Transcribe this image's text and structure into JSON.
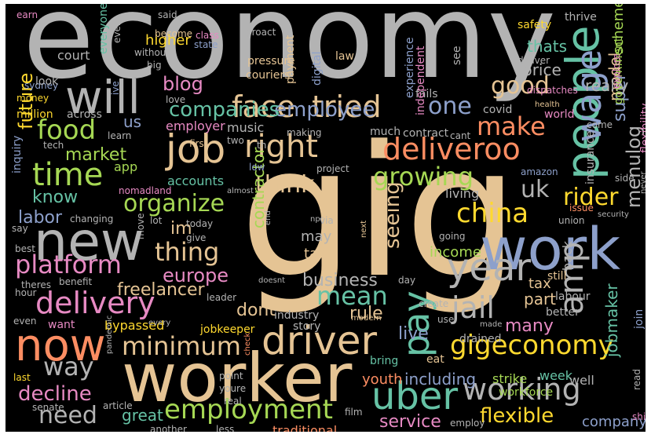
{
  "palette": {
    "gray": "#b3b3b3",
    "tan": "#e5c494",
    "teal": "#66c2a5",
    "orange": "#fc8d62",
    "blue": "#8da0cb",
    "pink": "#e78ac3",
    "green": "#a6d854",
    "yellow": "#ffd92f",
    "background": "#000000"
  },
  "words": [
    {
      "text": "economy",
      "color": "#b3b3b3",
      "orientation": "horizontal"
    },
    {
      "text": "gig",
      "color": "#e5c494",
      "orientation": "horizontal"
    },
    {
      "text": "worker",
      "color": "#e5c494",
      "orientation": "horizontal"
    },
    {
      "text": "people",
      "color": "#66c2a5",
      "orientation": "vertical"
    },
    {
      "text": "work",
      "color": "#8da0cb",
      "orientation": "horizontal"
    },
    {
      "text": "new",
      "color": "#b3b3b3",
      "orientation": "horizontal"
    },
    {
      "text": "now",
      "color": "#fc8d62",
      "orientation": "horizontal"
    },
    {
      "text": "will",
      "color": "#b3b3b3",
      "orientation": "horizontal"
    },
    {
      "text": "job",
      "color": "#e5c494",
      "orientation": "horizontal"
    },
    {
      "text": "wage",
      "color": "#8da0cb",
      "orientation": "vertical"
    },
    {
      "text": "driver",
      "color": "#e5c494",
      "orientation": "horizontal"
    },
    {
      "text": "uber",
      "color": "#66c2a5",
      "orientation": "horizontal"
    },
    {
      "text": "pay",
      "color": "#66c2a5",
      "orientation": "vertical"
    },
    {
      "text": "delivery",
      "color": "#e78ac3",
      "orientation": "horizontal"
    },
    {
      "text": "deliveroo",
      "color": "#fc8d62",
      "orientation": "horizontal"
    },
    {
      "text": "right",
      "color": "#e5c494",
      "orientation": "horizontal"
    },
    {
      "text": "time",
      "color": "#a6d854",
      "orientation": "horizontal"
    },
    {
      "text": "face",
      "color": "#e5c494",
      "orientation": "horizontal"
    },
    {
      "text": "tried",
      "color": "#e5c494",
      "orientation": "horizontal"
    },
    {
      "text": "year",
      "color": "#b3b3b3",
      "orientation": "horizontal"
    },
    {
      "text": "amp",
      "color": "#b3b3b3",
      "orientation": "vertical"
    },
    {
      "text": "china",
      "color": "#ffd92f",
      "orientation": "horizontal"
    },
    {
      "text": "working",
      "color": "#b3b3b3",
      "orientation": "horizontal"
    },
    {
      "text": "employment",
      "color": "#a6d854",
      "orientation": "horizontal"
    },
    {
      "text": "gigeconomy",
      "color": "#ffd92f",
      "orientation": "horizontal"
    },
    {
      "text": "platform",
      "color": "#e78ac3",
      "orientation": "horizontal"
    },
    {
      "text": "organize",
      "color": "#a6d854",
      "orientation": "horizontal"
    },
    {
      "text": "growing",
      "color": "#a6d854",
      "orientation": "horizontal"
    },
    {
      "text": "minimum",
      "color": "#e5c494",
      "orientation": "horizontal"
    },
    {
      "text": "make",
      "color": "#fc8d62",
      "orientation": "horizontal"
    },
    {
      "text": "mean",
      "color": "#66c2a5",
      "orientation": "horizontal"
    },
    {
      "text": "jail",
      "color": "#b3b3b3",
      "orientation": "horizontal"
    },
    {
      "text": "way",
      "color": "#b3b3b3",
      "orientation": "horizontal"
    },
    {
      "text": "food",
      "color": "#a6d854",
      "orientation": "horizontal"
    },
    {
      "text": "thing",
      "color": "#e5c494",
      "orientation": "horizontal"
    },
    {
      "text": "think",
      "color": "#e5c494",
      "orientation": "horizontal"
    },
    {
      "text": "uk",
      "color": "#b3b3b3",
      "orientation": "horizontal"
    },
    {
      "text": "one",
      "color": "#8da0cb",
      "orientation": "horizontal"
    },
    {
      "text": "good",
      "color": "#e5c494",
      "orientation": "horizontal"
    },
    {
      "text": "need",
      "color": "#b3b3b3",
      "orientation": "horizontal"
    },
    {
      "text": "rider",
      "color": "#ffd92f",
      "orientation": "horizontal"
    },
    {
      "text": "decline",
      "color": "#e78ac3",
      "orientation": "horizontal"
    },
    {
      "text": "flexible",
      "color": "#ffd92f",
      "orientation": "horizontal"
    },
    {
      "text": "employee",
      "color": "#8da0cb",
      "orientation": "horizontal"
    },
    {
      "text": "companies",
      "color": "#66c2a5",
      "orientation": "horizontal"
    },
    {
      "text": "europe",
      "color": "#e78ac3",
      "orientation": "horizontal"
    },
    {
      "text": "seeing",
      "color": "#e5c494",
      "orientation": "vertical"
    },
    {
      "text": "dont",
      "color": "#e5c494",
      "orientation": "horizontal"
    },
    {
      "text": "rule",
      "color": "#e5c494",
      "orientation": "horizontal"
    },
    {
      "text": "menulog",
      "color": "#b3b3b3",
      "orientation": "vertical"
    },
    {
      "text": "blog",
      "color": "#e78ac3",
      "orientation": "horizontal"
    },
    {
      "text": "many",
      "color": "#e78ac3",
      "orientation": "horizontal"
    },
    {
      "text": "live",
      "color": "#8da0cb",
      "orientation": "horizontal"
    },
    {
      "text": "part",
      "color": "#e5c494",
      "orientation": "horizontal"
    },
    {
      "text": "super",
      "color": "#8da0cb",
      "orientation": "vertical"
    },
    {
      "text": "model",
      "color": "#e5c494",
      "orientation": "vertical"
    },
    {
      "text": "service",
      "color": "#e78ac3",
      "orientation": "horizontal"
    },
    {
      "text": "im",
      "color": "#e5c494",
      "orientation": "horizontal"
    },
    {
      "text": "know",
      "color": "#66c2a5",
      "orientation": "horizontal"
    },
    {
      "text": "labor",
      "color": "#8da0cb",
      "orientation": "horizontal"
    },
    {
      "text": "market",
      "color": "#a6d854",
      "orientation": "horizontal"
    },
    {
      "text": "future",
      "color": "#ffd92f",
      "orientation": "vertical"
    },
    {
      "text": "business",
      "color": "#b3b3b3",
      "orientation": "horizontal"
    },
    {
      "text": "great",
      "color": "#66c2a5",
      "orientation": "horizontal"
    },
    {
      "text": "thats",
      "color": "#66c2a5",
      "orientation": "horizontal"
    },
    {
      "text": "really",
      "color": "#b3b3b3",
      "orientation": "horizontal"
    },
    {
      "text": "price",
      "color": "#b3b3b3",
      "orientation": "horizontal"
    },
    {
      "text": "us",
      "color": "#8da0cb",
      "orientation": "horizontal"
    },
    {
      "text": "jobmaker",
      "color": "#66c2a5",
      "orientation": "vertical"
    },
    {
      "text": "may",
      "color": "#b3b3b3",
      "orientation": "horizontal"
    },
    {
      "text": "contractor",
      "color": "#a6d854",
      "orientation": "vertical"
    },
    {
      "text": "freelancer",
      "color": "#e5c494",
      "orientation": "horizontal"
    },
    {
      "text": "including",
      "color": "#8da0cb",
      "orientation": "horizontal"
    },
    {
      "text": "youth",
      "color": "#fc8d62",
      "orientation": "horizontal"
    },
    {
      "text": "company",
      "color": "#8da0cb",
      "orientation": "horizontal"
    },
    {
      "text": "tax",
      "color": "#e5c494",
      "orientation": "horizontal"
    },
    {
      "text": "take",
      "color": "#e5c494",
      "orientation": "horizontal"
    },
    {
      "text": "higher",
      "color": "#ffd92f",
      "orientation": "horizontal"
    },
    {
      "text": "employer",
      "color": "#e78ac3",
      "orientation": "horizontal"
    },
    {
      "text": "music",
      "color": "#b3b3b3",
      "orientation": "horizontal"
    },
    {
      "text": "accounts",
      "color": "#66c2a5",
      "orientation": "horizontal"
    },
    {
      "text": "industry",
      "color": "#b3b3b3",
      "orientation": "horizontal"
    },
    {
      "text": "story",
      "color": "#b3b3b3",
      "orientation": "horizontal"
    },
    {
      "text": "traditional",
      "color": "#fc8d62",
      "orientation": "horizontal"
    },
    {
      "text": "income",
      "color": "#a6d854",
      "orientation": "horizontal"
    },
    {
      "text": "court",
      "color": "#b3b3b3",
      "orientation": "horizontal"
    },
    {
      "text": "app",
      "color": "#a6d854",
      "orientation": "horizontal"
    },
    {
      "text": "scheme",
      "color": "#a6d854",
      "orientation": "vertical"
    },
    {
      "text": "jobkeeper",
      "color": "#ffd92f",
      "orientation": "horizontal"
    },
    {
      "text": "living",
      "color": "#b3b3b3",
      "orientation": "horizontal"
    },
    {
      "text": "want",
      "color": "#e78ac3",
      "orientation": "horizontal"
    },
    {
      "text": "bypassed",
      "color": "#ffd92f",
      "orientation": "horizontal"
    },
    {
      "text": "drained",
      "color": "#b3b3b3",
      "orientation": "horizontal"
    },
    {
      "text": "strike",
      "color": "#a6d854",
      "orientation": "horizontal"
    },
    {
      "text": "week",
      "color": "#66c2a5",
      "orientation": "horizontal"
    },
    {
      "text": "well",
      "color": "#b3b3b3",
      "orientation": "horizontal"
    },
    {
      "text": "safety",
      "color": "#ffd92f",
      "orientation": "horizontal"
    },
    {
      "text": "thrive",
      "color": "#b3b3b3",
      "orientation": "horizontal"
    },
    {
      "text": "insurance",
      "color": "#b3b3b3",
      "orientation": "vertical"
    },
    {
      "text": "government",
      "color": "#a6d854",
      "orientation": "vertical"
    },
    {
      "text": "flexibility",
      "color": "#e78ac3",
      "orientation": "vertical"
    },
    {
      "text": "back",
      "color": "#b3b3b3",
      "orientation": "vertical"
    },
    {
      "text": "still",
      "color": "#e5c494",
      "orientation": "horizontal"
    },
    {
      "text": "labour",
      "color": "#b3b3b3",
      "orientation": "horizontal"
    },
    {
      "text": "better",
      "color": "#b3b3b3",
      "orientation": "horizontal"
    },
    {
      "text": "join",
      "color": "#8da0cb",
      "orientation": "vertical"
    },
    {
      "text": "workforce",
      "color": "#a6d854",
      "orientation": "horizontal"
    },
    {
      "text": "bring",
      "color": "#66c2a5",
      "orientation": "horizontal"
    },
    {
      "text": "eat",
      "color": "#e5c494",
      "orientation": "horizontal"
    },
    {
      "text": "covid",
      "color": "#b3b3b3",
      "orientation": "horizontal"
    },
    {
      "text": "world",
      "color": "#e78ac3",
      "orientation": "horizontal"
    },
    {
      "text": "much",
      "color": "#b3b3b3",
      "orientation": "horizontal"
    },
    {
      "text": "contract",
      "color": "#b3b3b3",
      "orientation": "horizontal"
    },
    {
      "text": "fails",
      "color": "#b3b3b3",
      "orientation": "horizontal"
    },
    {
      "text": "independent",
      "color": "#e78ac3",
      "orientation": "vertical"
    },
    {
      "text": "experience",
      "color": "#8da0cb",
      "orientation": "vertical"
    },
    {
      "text": "see",
      "color": "#b3b3b3",
      "orientation": "vertical"
    },
    {
      "text": "pressure",
      "color": "#e5c494",
      "orientation": "horizontal"
    },
    {
      "text": "couriers",
      "color": "#e5c494",
      "orientation": "horizontal"
    },
    {
      "text": "payment",
      "color": "#e5c494",
      "orientation": "vertical"
    },
    {
      "text": "digital",
      "color": "#8da0cb",
      "orientation": "vertical"
    },
    {
      "text": "law",
      "color": "#e5c494",
      "orientation": "horizontal"
    },
    {
      "text": "proact",
      "color": "#b3b3b3",
      "orientation": "horizontal"
    },
    {
      "text": "class",
      "color": "#e78ac3",
      "orientation": "horizontal"
    },
    {
      "text": "state",
      "color": "#8da0cb",
      "orientation": "horizontal"
    },
    {
      "text": "become",
      "color": "#e5c494",
      "orientation": "horizontal"
    },
    {
      "text": "without",
      "color": "#b3b3b3",
      "orientation": "horizontal"
    },
    {
      "text": "big",
      "color": "#b3b3b3",
      "orientation": "horizontal"
    },
    {
      "text": "said",
      "color": "#b3b3b3",
      "orientation": "horizontal"
    },
    {
      "text": "earn",
      "color": "#e78ac3",
      "orientation": "horizontal"
    },
    {
      "text": "everyone",
      "color": "#66c2a5",
      "orientation": "vertical"
    },
    {
      "text": "ever",
      "color": "#b3b3b3",
      "orientation": "vertical"
    },
    {
      "text": "sydney",
      "color": "#8da0cb",
      "orientation": "horizontal"
    },
    {
      "text": "look",
      "color": "#b3b3b3",
      "orientation": "horizontal"
    },
    {
      "text": "ive",
      "color": "#8da0cb",
      "orientation": "vertical"
    },
    {
      "text": "money",
      "color": "#ffd92f",
      "orientation": "horizontal"
    },
    {
      "text": "million",
      "color": "#ffd92f",
      "orientation": "horizontal"
    },
    {
      "text": "across",
      "color": "#b3b3b3",
      "orientation": "horizontal"
    },
    {
      "text": "love",
      "color": "#b3b3b3",
      "orientation": "horizontal"
    },
    {
      "text": "learn",
      "color": "#b3b3b3",
      "orientation": "horizontal"
    },
    {
      "text": "making",
      "color": "#b3b3b3",
      "orientation": "horizontal"
    },
    {
      "text": "th",
      "color": "#b3b3b3",
      "orientation": "horizontal"
    },
    {
      "text": "tech",
      "color": "#b3b3b3",
      "orientation": "horizontal"
    },
    {
      "text": "inquiry",
      "color": "#8da0cb",
      "orientation": "vertical"
    },
    {
      "text": "first",
      "color": "#e5c494",
      "orientation": "horizontal"
    },
    {
      "text": "two",
      "color": "#b3b3b3",
      "orientation": "horizontal"
    },
    {
      "text": "low",
      "color": "#8da0cb",
      "orientation": "horizontal"
    },
    {
      "text": "project",
      "color": "#b3b3b3",
      "orientation": "horizontal"
    },
    {
      "text": "cant",
      "color": "#b3b3b3",
      "orientation": "horizontal"
    },
    {
      "text": "amazon",
      "color": "#8da0cb",
      "orientation": "horizontal"
    },
    {
      "text": "deliver",
      "color": "#b3b3b3",
      "orientation": "horizontal"
    },
    {
      "text": "explore",
      "color": "#e78ac3",
      "orientation": "vertical"
    },
    {
      "text": "dispatches",
      "color": "#e78ac3",
      "orientation": "horizontal"
    },
    {
      "text": "health",
      "color": "#e5c494",
      "orientation": "horizontal"
    },
    {
      "text": "come",
      "color": "#b3b3b3",
      "orientation": "horizontal"
    },
    {
      "text": "side",
      "color": "#b3b3b3",
      "orientation": "horizontal"
    },
    {
      "text": "never",
      "color": "#b3b3b3",
      "orientation": "vertical"
    },
    {
      "text": "issue",
      "color": "#fc8d62",
      "orientation": "horizontal"
    },
    {
      "text": "union",
      "color": "#b3b3b3",
      "orientation": "horizontal"
    },
    {
      "text": "security",
      "color": "#b3b3b3",
      "orientation": "horizontal"
    },
    {
      "text": "nomadland",
      "color": "#e78ac3",
      "orientation": "horizontal"
    },
    {
      "text": "almost",
      "color": "#b3b3b3",
      "orientation": "horizontal"
    },
    {
      "text": "changing",
      "color": "#b3b3b3",
      "orientation": "horizontal"
    },
    {
      "text": "lot",
      "color": "#b3b3b3",
      "orientation": "horizontal"
    },
    {
      "text": "today",
      "color": "#b3b3b3",
      "orientation": "horizontal"
    },
    {
      "text": "move",
      "color": "#b3b3b3",
      "orientation": "vertical"
    },
    {
      "text": "give",
      "color": "#b3b3b3",
      "orientation": "horizontal"
    },
    {
      "text": "npr",
      "color": "#b3b3b3",
      "orientation": "horizontal"
    },
    {
      "text": "via",
      "color": "#b3b3b3",
      "orientation": "horizontal"
    },
    {
      "text": "end",
      "color": "#b3b3b3",
      "orientation": "vertical"
    },
    {
      "text": "next",
      "color": "#e5c494",
      "orientation": "vertical"
    },
    {
      "text": "protection",
      "color": "#e5c494",
      "orientation": "vertical"
    },
    {
      "text": "say",
      "color": "#b3b3b3",
      "orientation": "horizontal"
    },
    {
      "text": "best",
      "color": "#b3b3b3",
      "orientation": "horizontal"
    },
    {
      "text": "going",
      "color": "#b3b3b3",
      "orientation": "horizontal"
    },
    {
      "text": "doesnt",
      "color": "#b3b3b3",
      "orientation": "horizontal"
    },
    {
      "text": "day",
      "color": "#b3b3b3",
      "orientation": "horizontal"
    },
    {
      "text": "theres",
      "color": "#b3b3b3",
      "orientation": "horizontal"
    },
    {
      "text": "benefit",
      "color": "#b3b3b3",
      "orientation": "horizontal"
    },
    {
      "text": "hour",
      "color": "#b3b3b3",
      "orientation": "horizontal"
    },
    {
      "text": "leader",
      "color": "#b3b3b3",
      "orientation": "horizontal"
    },
    {
      "text": "create",
      "color": "#b3b3b3",
      "orientation": "horizontal"
    },
    {
      "text": "modern",
      "color": "#e5c494",
      "orientation": "horizontal"
    },
    {
      "text": "use",
      "color": "#b3b3b3",
      "orientation": "horizontal"
    },
    {
      "text": "made",
      "color": "#b3b3b3",
      "orientation": "horizontal"
    },
    {
      "text": "even",
      "color": "#b3b3b3",
      "orientation": "horizontal"
    },
    {
      "text": "every",
      "color": "#b3b3b3",
      "orientation": "horizontal"
    },
    {
      "text": "pandemic",
      "color": "#b3b3b3",
      "orientation": "vertical"
    },
    {
      "text": "check",
      "color": "#fc8d62",
      "orientation": "vertical"
    },
    {
      "text": "point",
      "color": "#b3b3b3",
      "orientation": "horizontal"
    },
    {
      "text": "youre",
      "color": "#b3b3b3",
      "orientation": "horizontal"
    },
    {
      "text": "real",
      "color": "#b3b3b3",
      "orientation": "horizontal"
    },
    {
      "text": "last",
      "color": "#ffd92f",
      "orientation": "horizontal"
    },
    {
      "text": "article",
      "color": "#b3b3b3",
      "orientation": "horizontal"
    },
    {
      "text": "senate",
      "color": "#b3b3b3",
      "orientation": "horizontal"
    },
    {
      "text": "another",
      "color": "#b3b3b3",
      "orientation": "horizontal"
    },
    {
      "text": "less",
      "color": "#b3b3b3",
      "orientation": "horizontal"
    },
    {
      "text": "film",
      "color": "#b3b3b3",
      "orientation": "horizontal"
    },
    {
      "text": "employ",
      "color": "#b3b3b3",
      "orientation": "horizontal"
    },
    {
      "text": "read",
      "color": "#b3b3b3",
      "orientation": "vertical"
    },
    {
      "text": "shift",
      "color": "#e78ac3",
      "orientation": "horizontal"
    }
  ]
}
